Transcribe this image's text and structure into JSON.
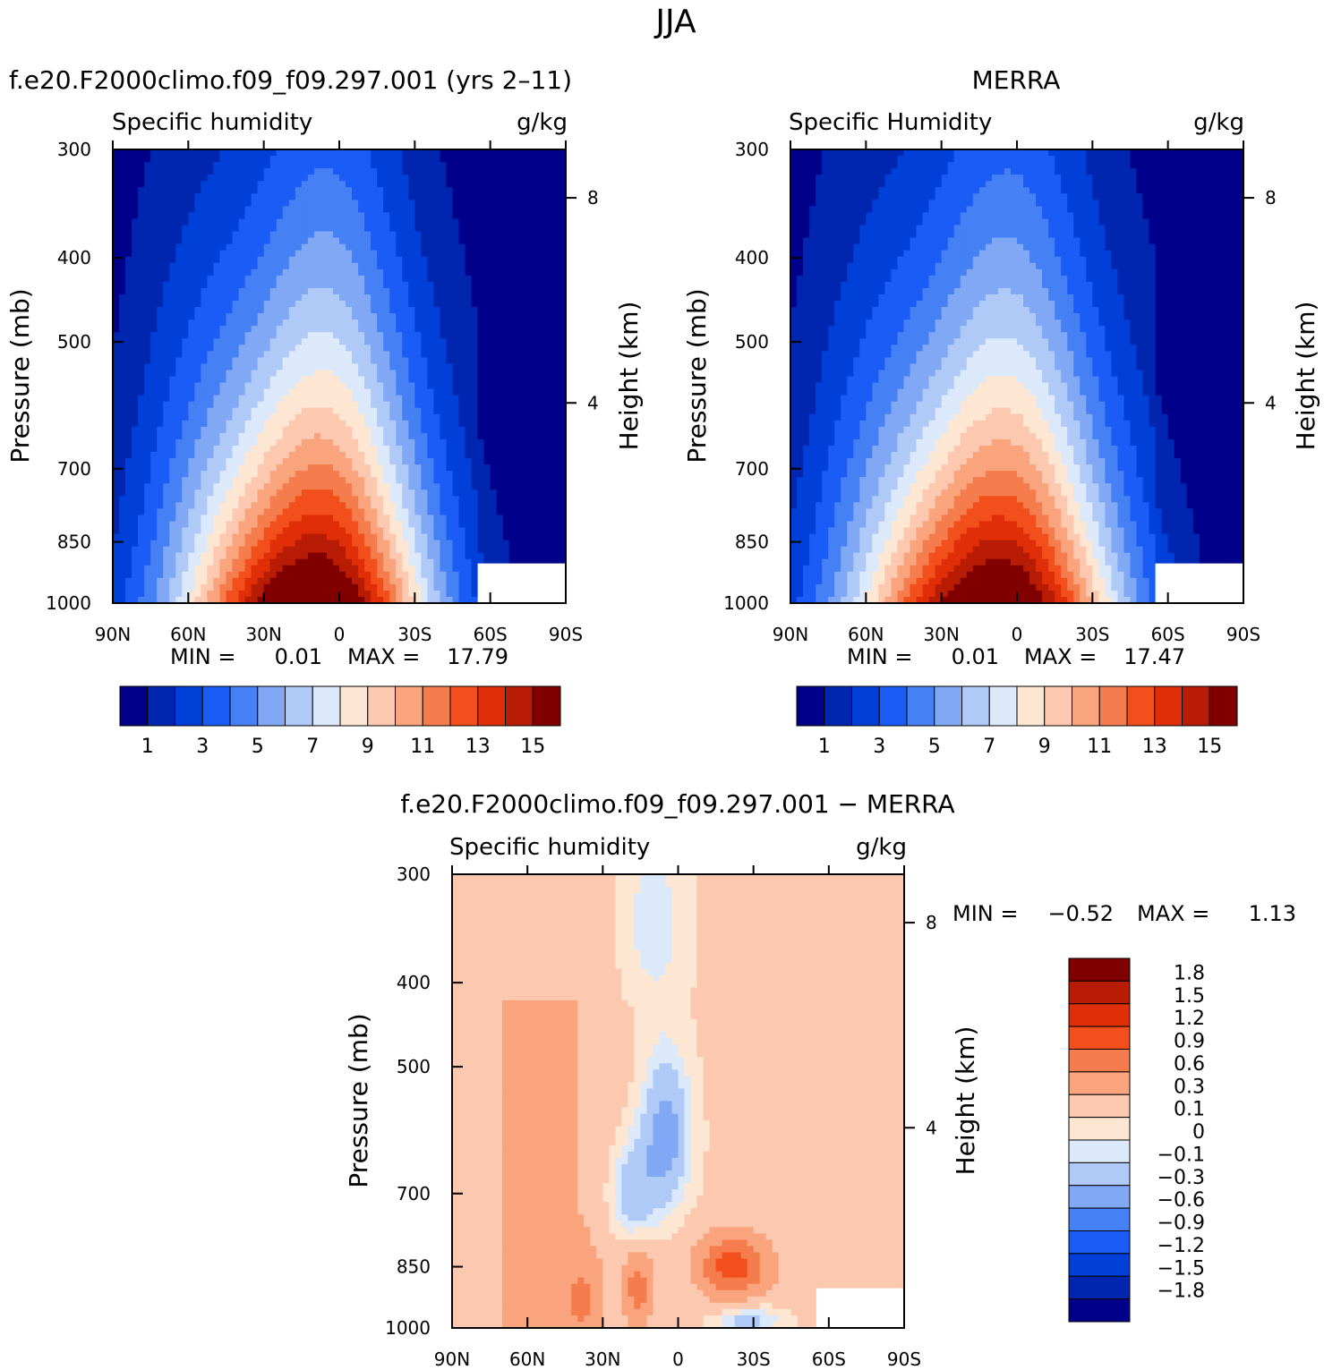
{
  "page_title": "JJA",
  "chart_data": [
    {
      "type": "heatmap",
      "panel_title": "f.e20.F2000climo.f09_f09.297.001 (yrs 2–11)",
      "left_label": "Specific humidity",
      "units": "g/kg",
      "ylabel": "Pressure (mb)",
      "right_ylabel": "Height (km)",
      "x_ticks": [
        "90N",
        "60N",
        "30N",
        "0",
        "30S",
        "60S",
        "90S"
      ],
      "x_values": [
        90,
        60,
        30,
        0,
        -30,
        -60,
        -90
      ],
      "y_ticks": [
        "300",
        "400",
        "500",
        "700",
        "850",
        "1000"
      ],
      "y_values": [
        300,
        400,
        500,
        700,
        850,
        1000
      ],
      "right_ticks": [
        "8",
        "4"
      ],
      "right_values": [
        8,
        4
      ],
      "min_label": "MIN =",
      "min_value": "0.01",
      "max_label": "MAX =",
      "max_value": "17.79",
      "peak": 17.79,
      "peak_lat": 10,
      "width_factor": 1.0,
      "colorbar_labels": [
        "1",
        "3",
        "5",
        "7",
        "9",
        "11",
        "13",
        "15"
      ],
      "colorbar_colors": [
        "#00008a",
        "#0026b0",
        "#0040d8",
        "#1a5cf5",
        "#4580f5",
        "#80a8f5",
        "#b0caf8",
        "#dce9fa",
        "#fde6d2",
        "#fcc8b0",
        "#f9a47c",
        "#f57c4c",
        "#f24f1c",
        "#e02e08",
        "#b81c04",
        "#800000"
      ]
    },
    {
      "type": "heatmap",
      "panel_title": "MERRA",
      "left_label": "Specific Humidity",
      "units": "g/kg",
      "ylabel": "Pressure (mb)",
      "right_ylabel": "Height (km)",
      "x_ticks": [
        "90N",
        "60N",
        "30N",
        "0",
        "30S",
        "60S",
        "90S"
      ],
      "x_values": [
        90,
        60,
        30,
        0,
        -30,
        -60,
        -90
      ],
      "y_ticks": [
        "300",
        "400",
        "500",
        "700",
        "850",
        "1000"
      ],
      "y_values": [
        300,
        400,
        500,
        700,
        850,
        1000
      ],
      "right_ticks": [
        "8",
        "4"
      ],
      "right_values": [
        8,
        4
      ],
      "min_label": "MIN =",
      "min_value": "0.01",
      "max_label": "MAX =",
      "max_value": "17.47",
      "peak": 17.47,
      "peak_lat": 8,
      "width_factor": 1.05,
      "colorbar_labels": [
        "1",
        "3",
        "5",
        "7",
        "9",
        "11",
        "13",
        "15"
      ],
      "colorbar_colors": [
        "#00008a",
        "#0026b0",
        "#0040d8",
        "#1a5cf5",
        "#4580f5",
        "#80a8f5",
        "#b0caf8",
        "#dce9fa",
        "#fde6d2",
        "#fcc8b0",
        "#f9a47c",
        "#f57c4c",
        "#f24f1c",
        "#e02e08",
        "#b81c04",
        "#800000"
      ]
    },
    {
      "type": "heatmap",
      "panel_title": "f.e20.F2000climo.f09_f09.297.001 − MERRA",
      "left_label": "Specific humidity",
      "units": "g/kg",
      "ylabel": "Pressure (mb)",
      "right_ylabel": "Height (km)",
      "x_ticks": [
        "90N",
        "60N",
        "30N",
        "0",
        "30S",
        "60S",
        "90S"
      ],
      "x_values": [
        90,
        60,
        30,
        0,
        -30,
        -60,
        -90
      ],
      "y_ticks": [
        "300",
        "400",
        "500",
        "700",
        "850",
        "1000"
      ],
      "y_values": [
        300,
        400,
        500,
        700,
        850,
        1000
      ],
      "right_ticks": [
        "8",
        "4"
      ],
      "right_values": [
        8,
        4
      ],
      "min_label": "MIN =",
      "min_value": "−0.52",
      "max_label": "MAX =",
      "max_value": "1.13",
      "colorbar_labels": [
        "1.8",
        "1.5",
        "1.2",
        "0.9",
        "0.6",
        "0.3",
        "0.1",
        "0",
        "−0.1",
        "−0.3",
        "−0.6",
        "−0.9",
        "−1.2",
        "−1.5",
        "−1.8"
      ],
      "colorbar_levels": [
        1.8,
        1.5,
        1.2,
        0.9,
        0.6,
        0.3,
        0.1,
        0,
        -0.1,
        -0.3,
        -0.6,
        -0.9,
        -1.2,
        -1.5,
        -1.8
      ],
      "colorbar_colors": [
        "#800000",
        "#b81c04",
        "#e02e08",
        "#f24f1c",
        "#f57c4c",
        "#f9a47c",
        "#fcc8b0",
        "#fde6d2",
        "#dce9fa",
        "#b0caf8",
        "#80a8f5",
        "#4580f5",
        "#1a5cf5",
        "#0040d8",
        "#0026b0",
        "#00008a"
      ]
    }
  ]
}
